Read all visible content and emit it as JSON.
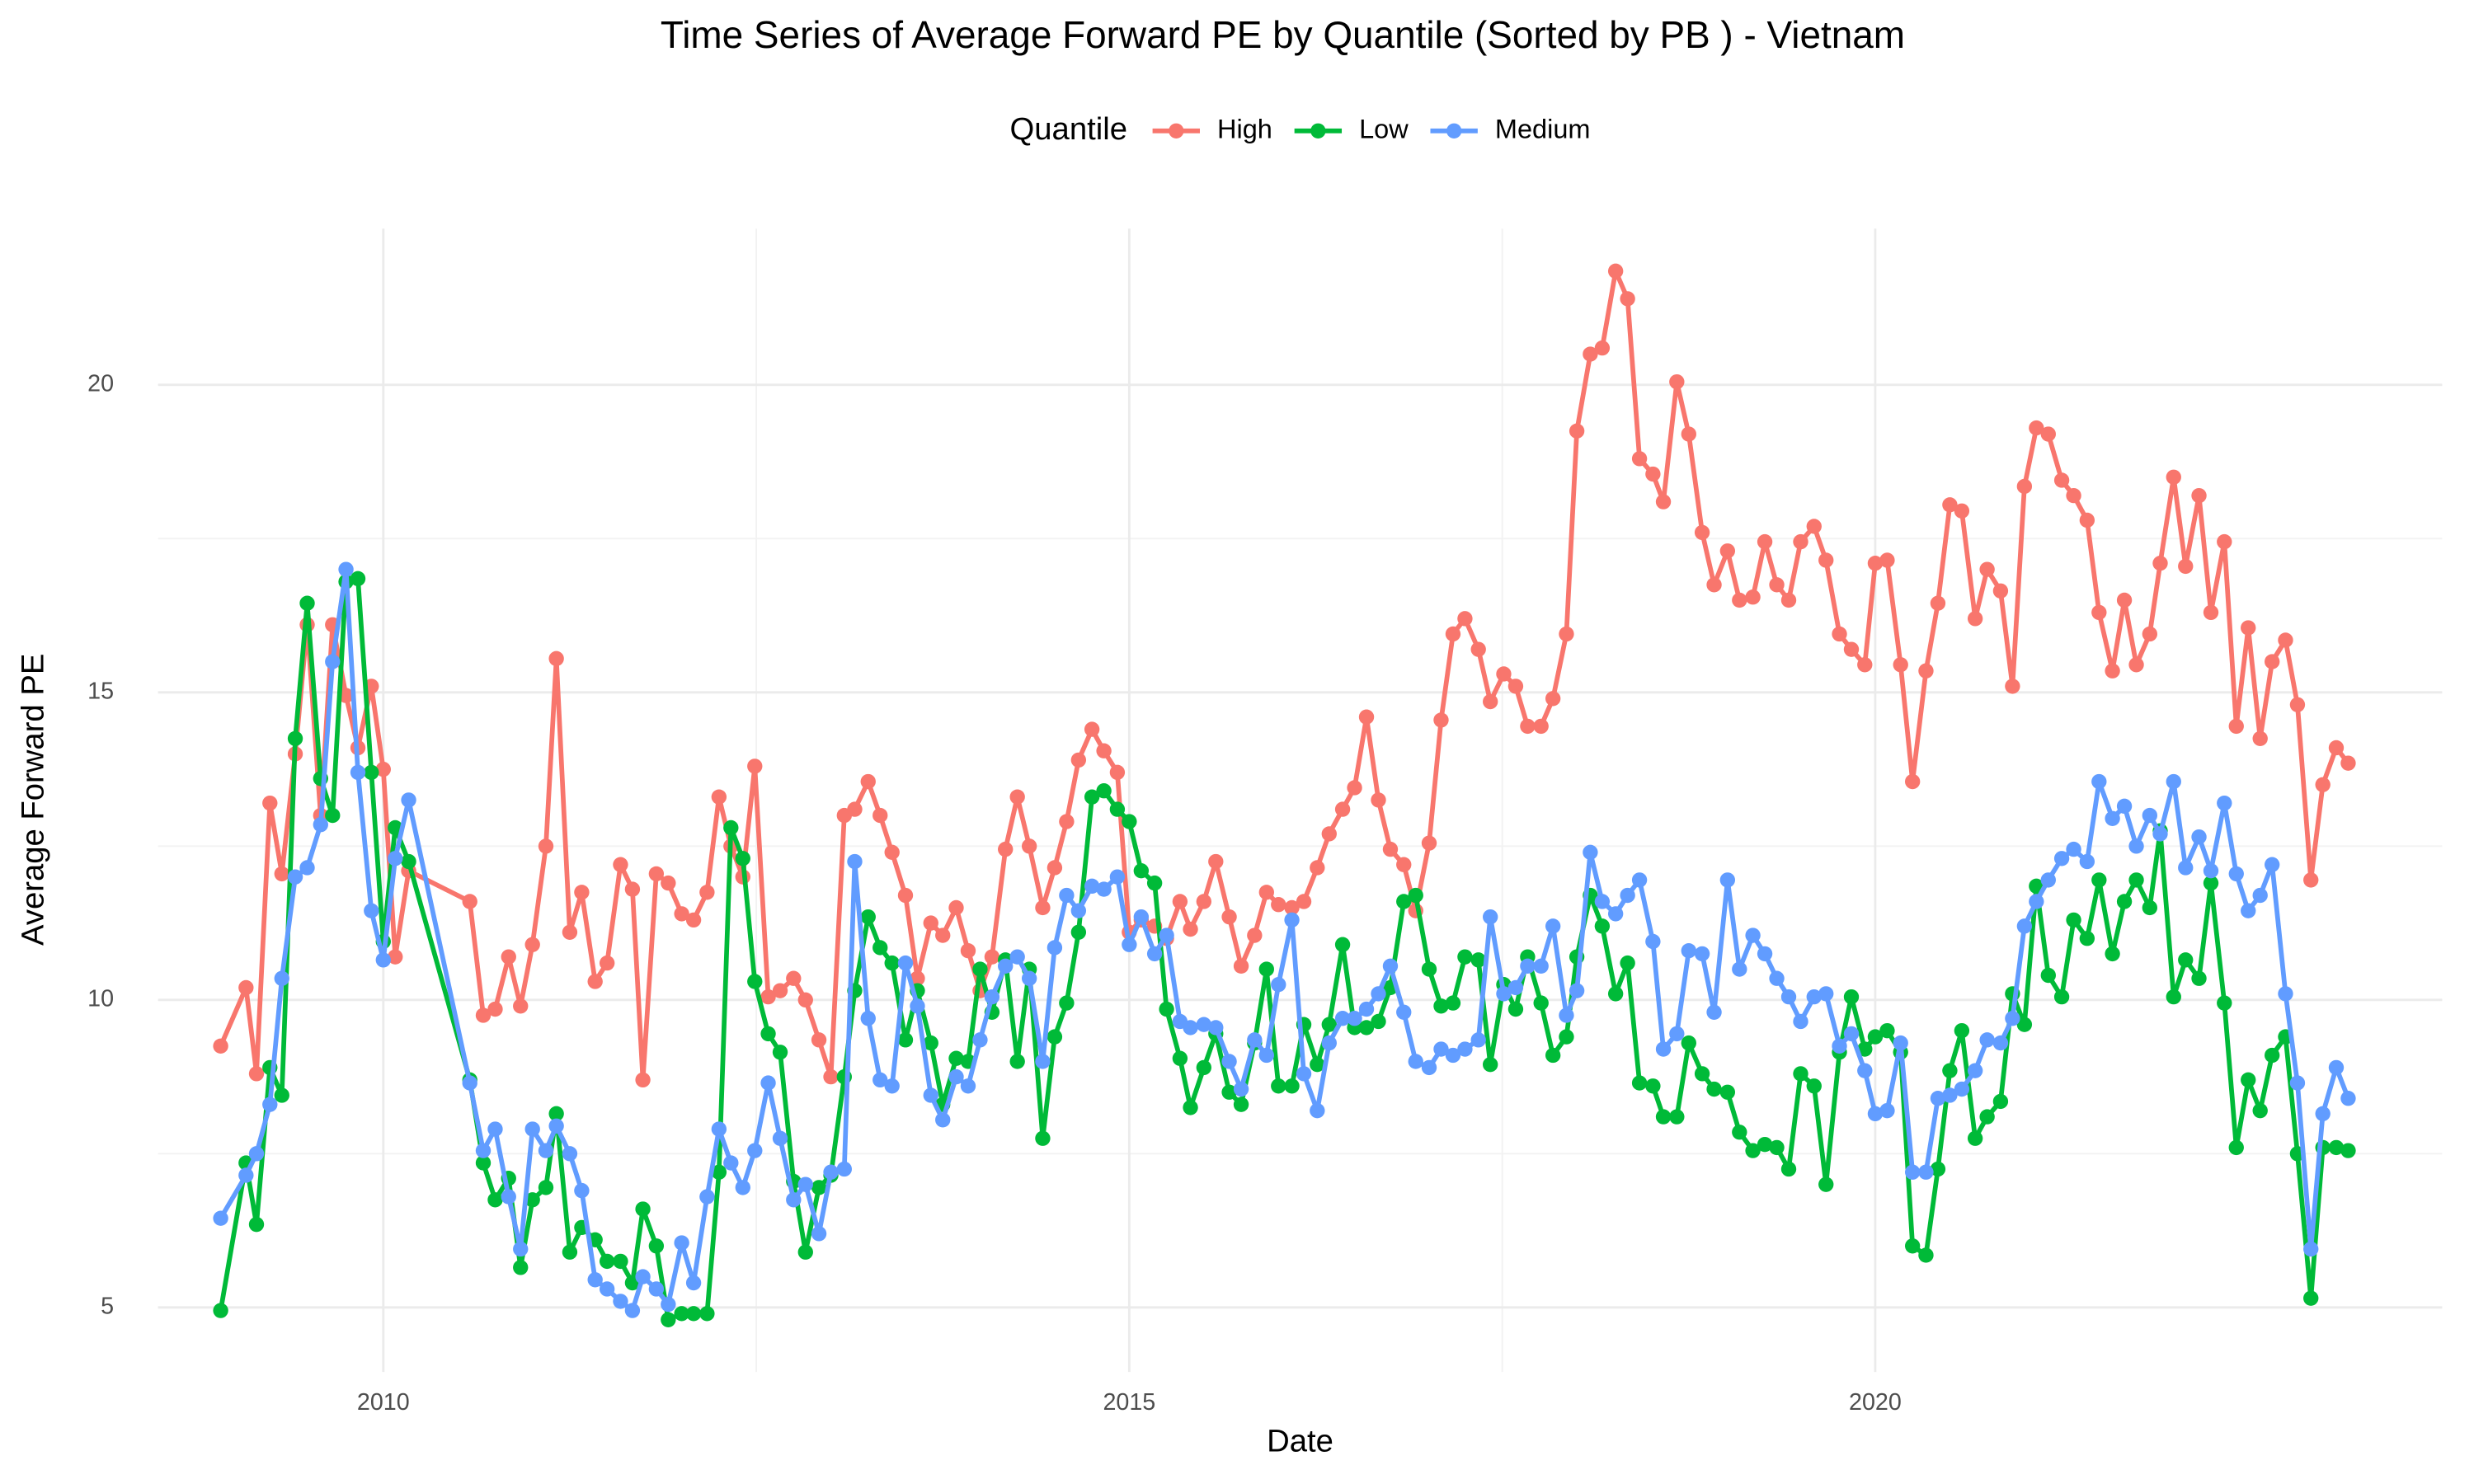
{
  "chart_data": {
    "type": "line",
    "title": "Time Series of Average Forward PE by Quantile (Sorted by PB ) - Vietnam",
    "x_label": "Date",
    "y_label": "Average Forward PE",
    "legend_title": "Quantile",
    "legend_position": "top",
    "grid": true,
    "xlim": [
      2008.49,
      2023.8
    ],
    "xticks": [
      2010,
      2015,
      2020
    ],
    "ylim": [
      3.95,
      22.54
    ],
    "yticks": [
      5,
      10,
      15,
      20
    ],
    "x": [
      2008.91,
      2009.08,
      2009.15,
      2009.24,
      2009.32,
      2009.41,
      2009.49,
      2009.58,
      2009.66,
      2009.75,
      2009.83,
      2009.92,
      2010.0,
      2010.08,
      2010.17,
      2010.58,
      2010.67,
      2010.75,
      2010.84,
      2010.92,
      2011.0,
      2011.09,
      2011.16,
      2011.25,
      2011.33,
      2011.42,
      2011.5,
      2011.59,
      2011.67,
      2011.74,
      2011.83,
      2011.91,
      2012.0,
      2012.08,
      2012.17,
      2012.25,
      2012.33,
      2012.41,
      2012.49,
      2012.58,
      2012.66,
      2012.75,
      2012.83,
      2012.92,
      2013.0,
      2013.09,
      2013.16,
      2013.25,
      2013.33,
      2013.41,
      2013.5,
      2013.58,
      2013.67,
      2013.75,
      2013.84,
      2013.92,
      2014.0,
      2014.08,
      2014.17,
      2014.25,
      2014.33,
      2014.42,
      2014.5,
      2014.58,
      2014.66,
      2014.75,
      2014.83,
      2014.92,
      2015.0,
      2015.08,
      2015.17,
      2015.25,
      2015.34,
      2015.41,
      2015.5,
      2015.58,
      2015.67,
      2015.75,
      2015.84,
      2015.92,
      2016.0,
      2016.09,
      2016.17,
      2016.26,
      2016.34,
      2016.43,
      2016.51,
      2016.59,
      2016.67,
      2016.75,
      2016.84,
      2016.92,
      2017.01,
      2017.09,
      2017.17,
      2017.25,
      2017.34,
      2017.42,
      2017.51,
      2017.59,
      2017.67,
      2017.76,
      2017.84,
      2017.93,
      2018.0,
      2018.09,
      2018.17,
      2018.26,
      2018.34,
      2018.42,
      2018.51,
      2018.58,
      2018.67,
      2018.75,
      2018.84,
      2018.92,
      2019.01,
      2019.09,
      2019.18,
      2019.26,
      2019.34,
      2019.42,
      2019.5,
      2019.59,
      2019.67,
      2019.76,
      2019.84,
      2019.93,
      2020.0,
      2020.08,
      2020.17,
      2020.25,
      2020.34,
      2020.42,
      2020.5,
      2020.58,
      2020.67,
      2020.75,
      2020.84,
      2020.92,
      2021.0,
      2021.08,
      2021.16,
      2021.25,
      2021.33,
      2021.42,
      2021.5,
      2021.59,
      2021.67,
      2021.75,
      2021.84,
      2021.91,
      2022.0,
      2022.08,
      2022.17,
      2022.25,
      2022.34,
      2022.42,
      2022.5,
      2022.58,
      2022.66,
      2022.75,
      2022.83,
      2022.92,
      2023.0,
      2023.09,
      2023.17
    ],
    "series": [
      {
        "name": "High",
        "color": "#F8766D",
        "values": [
          9.25,
          10.2,
          8.8,
          13.2,
          12.05,
          14.0,
          16.1,
          13.0,
          16.1,
          14.95,
          14.1,
          15.1,
          13.75,
          10.7,
          12.1,
          11.6,
          9.75,
          9.85,
          10.7,
          9.9,
          10.9,
          12.5,
          15.55,
          11.1,
          11.75,
          10.3,
          10.6,
          12.2,
          11.8,
          8.7,
          12.05,
          11.9,
          11.4,
          11.3,
          11.75,
          13.3,
          12.5,
          12.0,
          13.8,
          10.05,
          10.15,
          10.35,
          10.0,
          9.35,
          8.75,
          13.0,
          13.1,
          13.55,
          13.0,
          12.4,
          11.7,
          10.35,
          11.25,
          11.05,
          11.5,
          10.8,
          10.15,
          10.7,
          12.45,
          13.3,
          12.5,
          11.5,
          12.15,
          12.9,
          13.9,
          14.4,
          14.05,
          13.7,
          11.1,
          11.3,
          11.2,
          11.0,
          11.6,
          11.15,
          11.6,
          12.25,
          11.35,
          10.55,
          11.05,
          11.75,
          11.55,
          11.5,
          11.6,
          12.15,
          12.7,
          13.1,
          13.45,
          14.6,
          13.25,
          12.45,
          12.2,
          11.45,
          12.55,
          14.55,
          15.95,
          16.2,
          15.7,
          14.85,
          15.3,
          15.1,
          14.45,
          14.45,
          14.9,
          15.95,
          19.25,
          20.5,
          20.6,
          21.85,
          21.4,
          18.8,
          18.55,
          18.1,
          20.05,
          19.2,
          17.6,
          16.75,
          17.3,
          16.5,
          16.55,
          17.45,
          16.75,
          16.5,
          17.45,
          17.7,
          17.15,
          15.95,
          15.7,
          15.45,
          17.1,
          17.15,
          15.45,
          13.55,
          15.35,
          16.45,
          18.05,
          17.95,
          16.2,
          17.0,
          16.65,
          15.1,
          18.35,
          19.3,
          19.2,
          18.45,
          18.2,
          17.8,
          16.3,
          15.35,
          16.5,
          15.45,
          15.95,
          17.1,
          18.5,
          17.05,
          18.2,
          16.3,
          17.45,
          14.45,
          16.05,
          14.25,
          15.5,
          15.85,
          14.8,
          11.95,
          13.5,
          14.1,
          13.85
        ]
      },
      {
        "name": "Low",
        "color": "#00BA38",
        "values": [
          4.95,
          7.35,
          6.35,
          8.9,
          8.45,
          14.25,
          16.45,
          13.6,
          13.0,
          16.8,
          16.85,
          13.7,
          10.95,
          12.8,
          12.25,
          8.7,
          7.35,
          6.75,
          7.1,
          5.65,
          6.75,
          6.95,
          8.15,
          5.9,
          6.3,
          6.1,
          5.75,
          5.75,
          5.4,
          6.6,
          6.0,
          4.8,
          4.9,
          4.9,
          4.9,
          7.2,
          12.8,
          12.3,
          10.3,
          9.45,
          9.15,
          7.05,
          5.9,
          6.95,
          7.15,
          8.75,
          10.15,
          11.35,
          10.85,
          10.6,
          9.35,
          10.15,
          9.3,
          8.3,
          9.05,
          9.0,
          10.5,
          9.8,
          10.65,
          9.0,
          10.5,
          7.75,
          9.4,
          9.95,
          11.1,
          13.3,
          13.4,
          13.1,
          12.9,
          12.1,
          11.9,
          9.85,
          9.05,
          8.25,
          8.9,
          9.45,
          8.5,
          8.3,
          9.3,
          10.5,
          8.6,
          8.6,
          9.6,
          8.95,
          9.6,
          10.9,
          9.55,
          9.55,
          9.65,
          10.2,
          11.6,
          11.7,
          10.5,
          9.9,
          9.95,
          10.7,
          10.65,
          8.95,
          10.25,
          9.85,
          10.7,
          9.95,
          9.1,
          9.4,
          10.7,
          11.7,
          11.2,
          10.1,
          10.6,
          8.65,
          8.6,
          8.1,
          8.1,
          9.3,
          8.8,
          8.55,
          8.5,
          7.85,
          7.55,
          7.65,
          7.6,
          7.25,
          8.8,
          8.6,
          7.0,
          9.15,
          10.05,
          9.2,
          9.4,
          9.5,
          9.15,
          6.0,
          5.85,
          7.25,
          8.85,
          9.5,
          7.75,
          8.1,
          8.35,
          10.1,
          9.6,
          11.85,
          10.4,
          10.05,
          11.3,
          11.0,
          11.95,
          10.75,
          11.6,
          11.95,
          11.5,
          12.75,
          10.05,
          10.65,
          10.35,
          11.9,
          9.95,
          7.6,
          8.7,
          8.2,
          9.1,
          9.4,
          7.5,
          5.15,
          7.6,
          7.6,
          7.55
        ]
      },
      {
        "name": "Medium",
        "color": "#619CFF",
        "values": [
          6.45,
          7.15,
          7.5,
          8.3,
          10.35,
          12.0,
          12.15,
          12.85,
          15.5,
          17.0,
          13.7,
          11.45,
          10.65,
          12.3,
          13.25,
          8.65,
          7.55,
          7.9,
          6.8,
          5.95,
          7.9,
          7.55,
          7.95,
          7.5,
          6.9,
          5.45,
          5.3,
          5.1,
          4.95,
          5.5,
          5.3,
          5.05,
          6.05,
          5.4,
          6.8,
          7.9,
          7.35,
          6.95,
          7.55,
          8.65,
          7.75,
          6.75,
          7.0,
          6.2,
          7.2,
          7.25,
          12.25,
          9.7,
          8.7,
          8.6,
          10.6,
          9.9,
          8.45,
          8.05,
          8.75,
          8.6,
          9.35,
          10.05,
          10.55,
          10.7,
          10.35,
          9.0,
          10.85,
          11.7,
          11.45,
          11.85,
          11.8,
          12.0,
          10.9,
          11.35,
          10.75,
          11.05,
          9.65,
          9.55,
          9.6,
          9.55,
          9.0,
          8.55,
          9.35,
          9.1,
          10.25,
          11.3,
          8.8,
          8.2,
          9.3,
          9.7,
          9.7,
          9.85,
          10.1,
          10.55,
          9.8,
          9.0,
          8.9,
          9.2,
          9.1,
          9.2,
          9.35,
          11.35,
          10.1,
          10.2,
          10.55,
          10.55,
          11.2,
          9.75,
          10.15,
          12.4,
          11.6,
          11.4,
          11.7,
          11.95,
          10.95,
          9.2,
          9.45,
          10.8,
          10.75,
          9.8,
          11.95,
          10.5,
          11.05,
          10.75,
          10.35,
          10.05,
          9.65,
          10.05,
          10.1,
          9.25,
          9.45,
          8.85,
          8.15,
          8.2,
          9.3,
          7.2,
          7.2,
          8.4,
          8.45,
          8.55,
          8.85,
          9.35,
          9.3,
          9.7,
          11.2,
          11.6,
          11.95,
          12.3,
          12.45,
          12.25,
          13.55,
          12.95,
          13.15,
          12.5,
          13.0,
          12.7,
          13.55,
          12.15,
          12.65,
          12.1,
          13.2,
          12.05,
          11.45,
          11.7,
          12.2,
          10.1,
          8.65,
          5.95,
          8.15,
          8.9,
          8.4
        ]
      }
    ]
  }
}
